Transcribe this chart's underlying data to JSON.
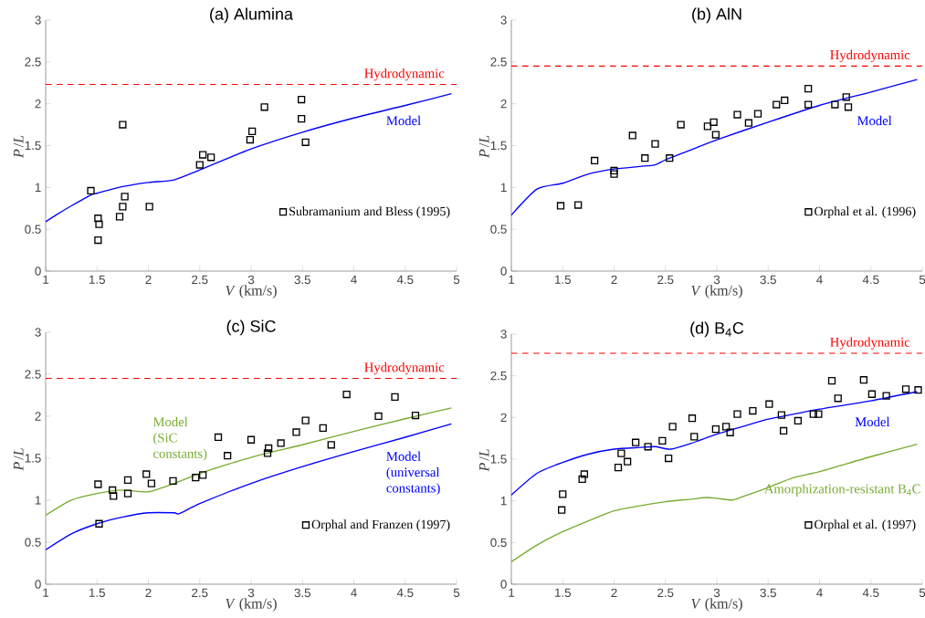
{
  "chart_data": [
    {
      "type": "line",
      "title": "(a) Alumina",
      "xlabel": "*V* (km/s)",
      "ylabel": "*P*/*L*",
      "xlim": [
        1,
        5
      ],
      "ylim": [
        0,
        3
      ],
      "xticks": [
        1,
        1.5,
        2,
        2.5,
        3,
        3.5,
        4,
        4.5,
        5
      ],
      "yticks": [
        0,
        0.5,
        1,
        1.5,
        2,
        2.5,
        3
      ],
      "legend": "bottom right",
      "ref_lines": [
        {
          "axis": "y",
          "value": 2.23,
          "label": "Hydrodynamic",
          "color": "#ff0000",
          "line_style": "dashed"
        }
      ],
      "series": [
        {
          "name": "Model",
          "type": "line",
          "color": "#0000ff",
          "x": [
            1,
            1.1,
            1.25,
            1.44,
            1.5,
            1.75,
            2,
            2.25,
            2.5,
            3,
            3.5,
            4,
            4.5,
            4.95
          ],
          "values": [
            0.59,
            0.67,
            0.78,
            0.91,
            0.93,
            1.01,
            1.06,
            1.09,
            1.21,
            1.46,
            1.66,
            1.83,
            1.98,
            2.12
          ]
        },
        {
          "name": "Subramanium and Bless (1995)",
          "type": "scatter",
          "color": "#000000",
          "marker": "square",
          "x": [
            1.44,
            1.51,
            1.52,
            1.51,
            1.75,
            1.72,
            1.75,
            1.77,
            2.01,
            2.5,
            2.53,
            2.61,
            2.99,
            3.01,
            3.13,
            3.49,
            3.49,
            3.53
          ],
          "values": [
            0.96,
            0.63,
            0.56,
            0.37,
            1.75,
            0.65,
            0.77,
            0.89,
            0.77,
            1.27,
            1.39,
            1.36,
            1.57,
            1.67,
            1.96,
            2.05,
            1.82,
            1.54
          ]
        }
      ]
    },
    {
      "type": "line",
      "title": "(b) AlN",
      "xlabel": "*V* (km/s)",
      "ylabel": "*P*/*L*",
      "xlim": [
        1,
        5
      ],
      "ylim": [
        0,
        3
      ],
      "xticks": [
        1,
        1.5,
        2,
        2.5,
        3,
        3.5,
        4,
        4.5,
        5
      ],
      "yticks": [
        0,
        0.5,
        1,
        1.5,
        2,
        2.5,
        3
      ],
      "legend": "bottom right",
      "ref_lines": [
        {
          "axis": "y",
          "value": 2.45,
          "label": "Hydrodynamic",
          "color": "#ff0000",
          "line_style": "dashed"
        }
      ],
      "series": [
        {
          "name": "Model",
          "type": "line",
          "color": "#0000ff",
          "x": [
            1,
            1.25,
            1.5,
            1.75,
            2,
            2.25,
            2.4,
            2.5,
            2.75,
            3,
            3.5,
            4,
            4.5,
            4.95
          ],
          "values": [
            0.67,
            0.98,
            1.05,
            1.16,
            1.22,
            1.25,
            1.27,
            1.33,
            1.45,
            1.57,
            1.78,
            1.98,
            2.14,
            2.29
          ]
        },
        {
          "name": "Orphal et al. (1996)",
          "type": "scatter",
          "color": "#000000",
          "marker": "square",
          "x": [
            1.48,
            1.65,
            1.81,
            2.0,
            2.0,
            2.18,
            2.3,
            2.4,
            2.54,
            2.65,
            2.91,
            2.97,
            2.99,
            3.2,
            3.31,
            3.4,
            3.58,
            3.66,
            3.89,
            3.89,
            4.15,
            4.26,
            4.28
          ],
          "values": [
            0.78,
            0.79,
            1.32,
            1.2,
            1.16,
            1.62,
            1.35,
            1.52,
            1.35,
            1.75,
            1.73,
            1.78,
            1.63,
            1.87,
            1.77,
            1.88,
            1.99,
            2.04,
            2.18,
            1.99,
            1.99,
            2.08,
            1.96
          ]
        }
      ]
    },
    {
      "type": "line",
      "title": "(c) SiC",
      "xlabel": "*V* (km/s)",
      "ylabel": "*P*/*L*",
      "xlim": [
        1,
        5
      ],
      "ylim": [
        0,
        3
      ],
      "xticks": [
        1,
        1.5,
        2,
        2.5,
        3,
        3.5,
        4,
        4.5,
        5
      ],
      "yticks": [
        0,
        0.5,
        1,
        1.5,
        2,
        2.5,
        3
      ],
      "legend": "bottom right",
      "ref_lines": [
        {
          "axis": "y",
          "value": 2.45,
          "label": "Hydrodynamic",
          "color": "#ff0000",
          "line_style": "dashed"
        }
      ],
      "series": [
        {
          "name": "Model (SiC constants)",
          "type": "line",
          "color": "#77ac30",
          "x": [
            1,
            1.25,
            1.5,
            1.75,
            2,
            2.25,
            2.5,
            3,
            3.5,
            4,
            4.5,
            4.95
          ],
          "values": [
            0.82,
            1.0,
            1.08,
            1.12,
            1.1,
            1.2,
            1.32,
            1.51,
            1.66,
            1.82,
            1.97,
            2.1
          ]
        },
        {
          "name": "Model (universal constants)",
          "type": "line",
          "color": "#0000ff",
          "x": [
            1,
            1.25,
            1.5,
            1.75,
            2,
            2.25,
            2.3,
            2.5,
            3,
            3.5,
            4,
            4.5,
            4.95
          ],
          "values": [
            0.41,
            0.6,
            0.72,
            0.8,
            0.85,
            0.85,
            0.84,
            0.96,
            1.2,
            1.4,
            1.58,
            1.75,
            1.91
          ]
        },
        {
          "name": "Orphal and Franzen (1997)",
          "type": "scatter",
          "color": "#000000",
          "marker": "square",
          "x": [
            1.51,
            1.65,
            1.66,
            1.52,
            1.8,
            1.8,
            1.98,
            2.03,
            2.24,
            2.46,
            2.53,
            2.68,
            2.77,
            3.0,
            3.16,
            3.17,
            3.29,
            3.44,
            3.53,
            3.7,
            3.78,
            3.93,
            4.24,
            4.4,
            4.6
          ],
          "values": [
            1.19,
            1.12,
            1.05,
            0.72,
            1.24,
            1.08,
            1.31,
            1.2,
            1.23,
            1.27,
            1.3,
            1.75,
            1.53,
            1.72,
            1.56,
            1.62,
            1.68,
            1.81,
            1.95,
            1.86,
            1.66,
            2.26,
            2.0,
            2.23,
            2.01
          ]
        }
      ]
    },
    {
      "type": "line",
      "title": "(d) B$_{4}$C",
      "xlabel": "*V* (km/s)",
      "ylabel": "*P*/*L*",
      "xlim": [
        1,
        5
      ],
      "ylim": [
        0,
        3
      ],
      "xticks": [
        1,
        1.5,
        2,
        2.5,
        3,
        3.5,
        4,
        4.5,
        5
      ],
      "yticks": [
        0,
        0.5,
        1,
        1.5,
        2,
        2.5,
        3
      ],
      "legend": "bottom right",
      "ref_lines": [
        {
          "axis": "y",
          "value": 2.77,
          "label": "Hydrodynamic",
          "color": "#ff0000",
          "line_style": "dashed"
        }
      ],
      "series": [
        {
          "name": "Model",
          "type": "line",
          "color": "#0000ff",
          "x": [
            1,
            1.25,
            1.5,
            1.75,
            2,
            2.25,
            2.4,
            2.55,
            2.75,
            3,
            3.25,
            3.5,
            3.75,
            4,
            4.5,
            4.95
          ],
          "values": [
            1.07,
            1.33,
            1.46,
            1.56,
            1.62,
            1.64,
            1.65,
            1.62,
            1.69,
            1.8,
            1.89,
            1.98,
            2.04,
            2.1,
            2.2,
            2.31
          ]
        },
        {
          "name": "Amorphization-resistant B$_{4}$C",
          "type": "line",
          "color": "#77ac30",
          "x": [
            1,
            1.25,
            1.5,
            1.75,
            2,
            2.25,
            2.5,
            2.75,
            2.9,
            3.0,
            3.15,
            3.25,
            3.5,
            3.75,
            4,
            4.5,
            4.95
          ],
          "values": [
            0.27,
            0.47,
            0.63,
            0.76,
            0.88,
            0.94,
            0.99,
            1.02,
            1.04,
            1.03,
            1.01,
            1.05,
            1.16,
            1.28,
            1.35,
            1.53,
            1.68
          ]
        },
        {
          "name": "Orphal et al. (1997)",
          "type": "scatter",
          "color": "#000000",
          "marker": "square",
          "x": [
            1.49,
            1.5,
            1.69,
            1.71,
            2.04,
            2.07,
            2.13,
            2.21,
            2.33,
            2.47,
            2.53,
            2.57,
            2.76,
            2.78,
            2.99,
            3.09,
            3.13,
            3.2,
            3.35,
            3.51,
            3.63,
            3.65,
            3.79,
            3.94,
            3.99,
            4.12,
            4.18,
            4.43,
            4.51,
            4.65,
            4.84,
            4.96
          ],
          "values": [
            0.89,
            1.08,
            1.26,
            1.32,
            1.4,
            1.57,
            1.47,
            1.7,
            1.65,
            1.72,
            1.51,
            1.89,
            1.99,
            1.77,
            1.86,
            1.89,
            1.82,
            2.04,
            2.08,
            2.16,
            2.03,
            1.84,
            1.96,
            2.04,
            2.04,
            2.44,
            2.23,
            2.45,
            2.28,
            2.26,
            2.34,
            2.33
          ]
        }
      ]
    }
  ]
}
